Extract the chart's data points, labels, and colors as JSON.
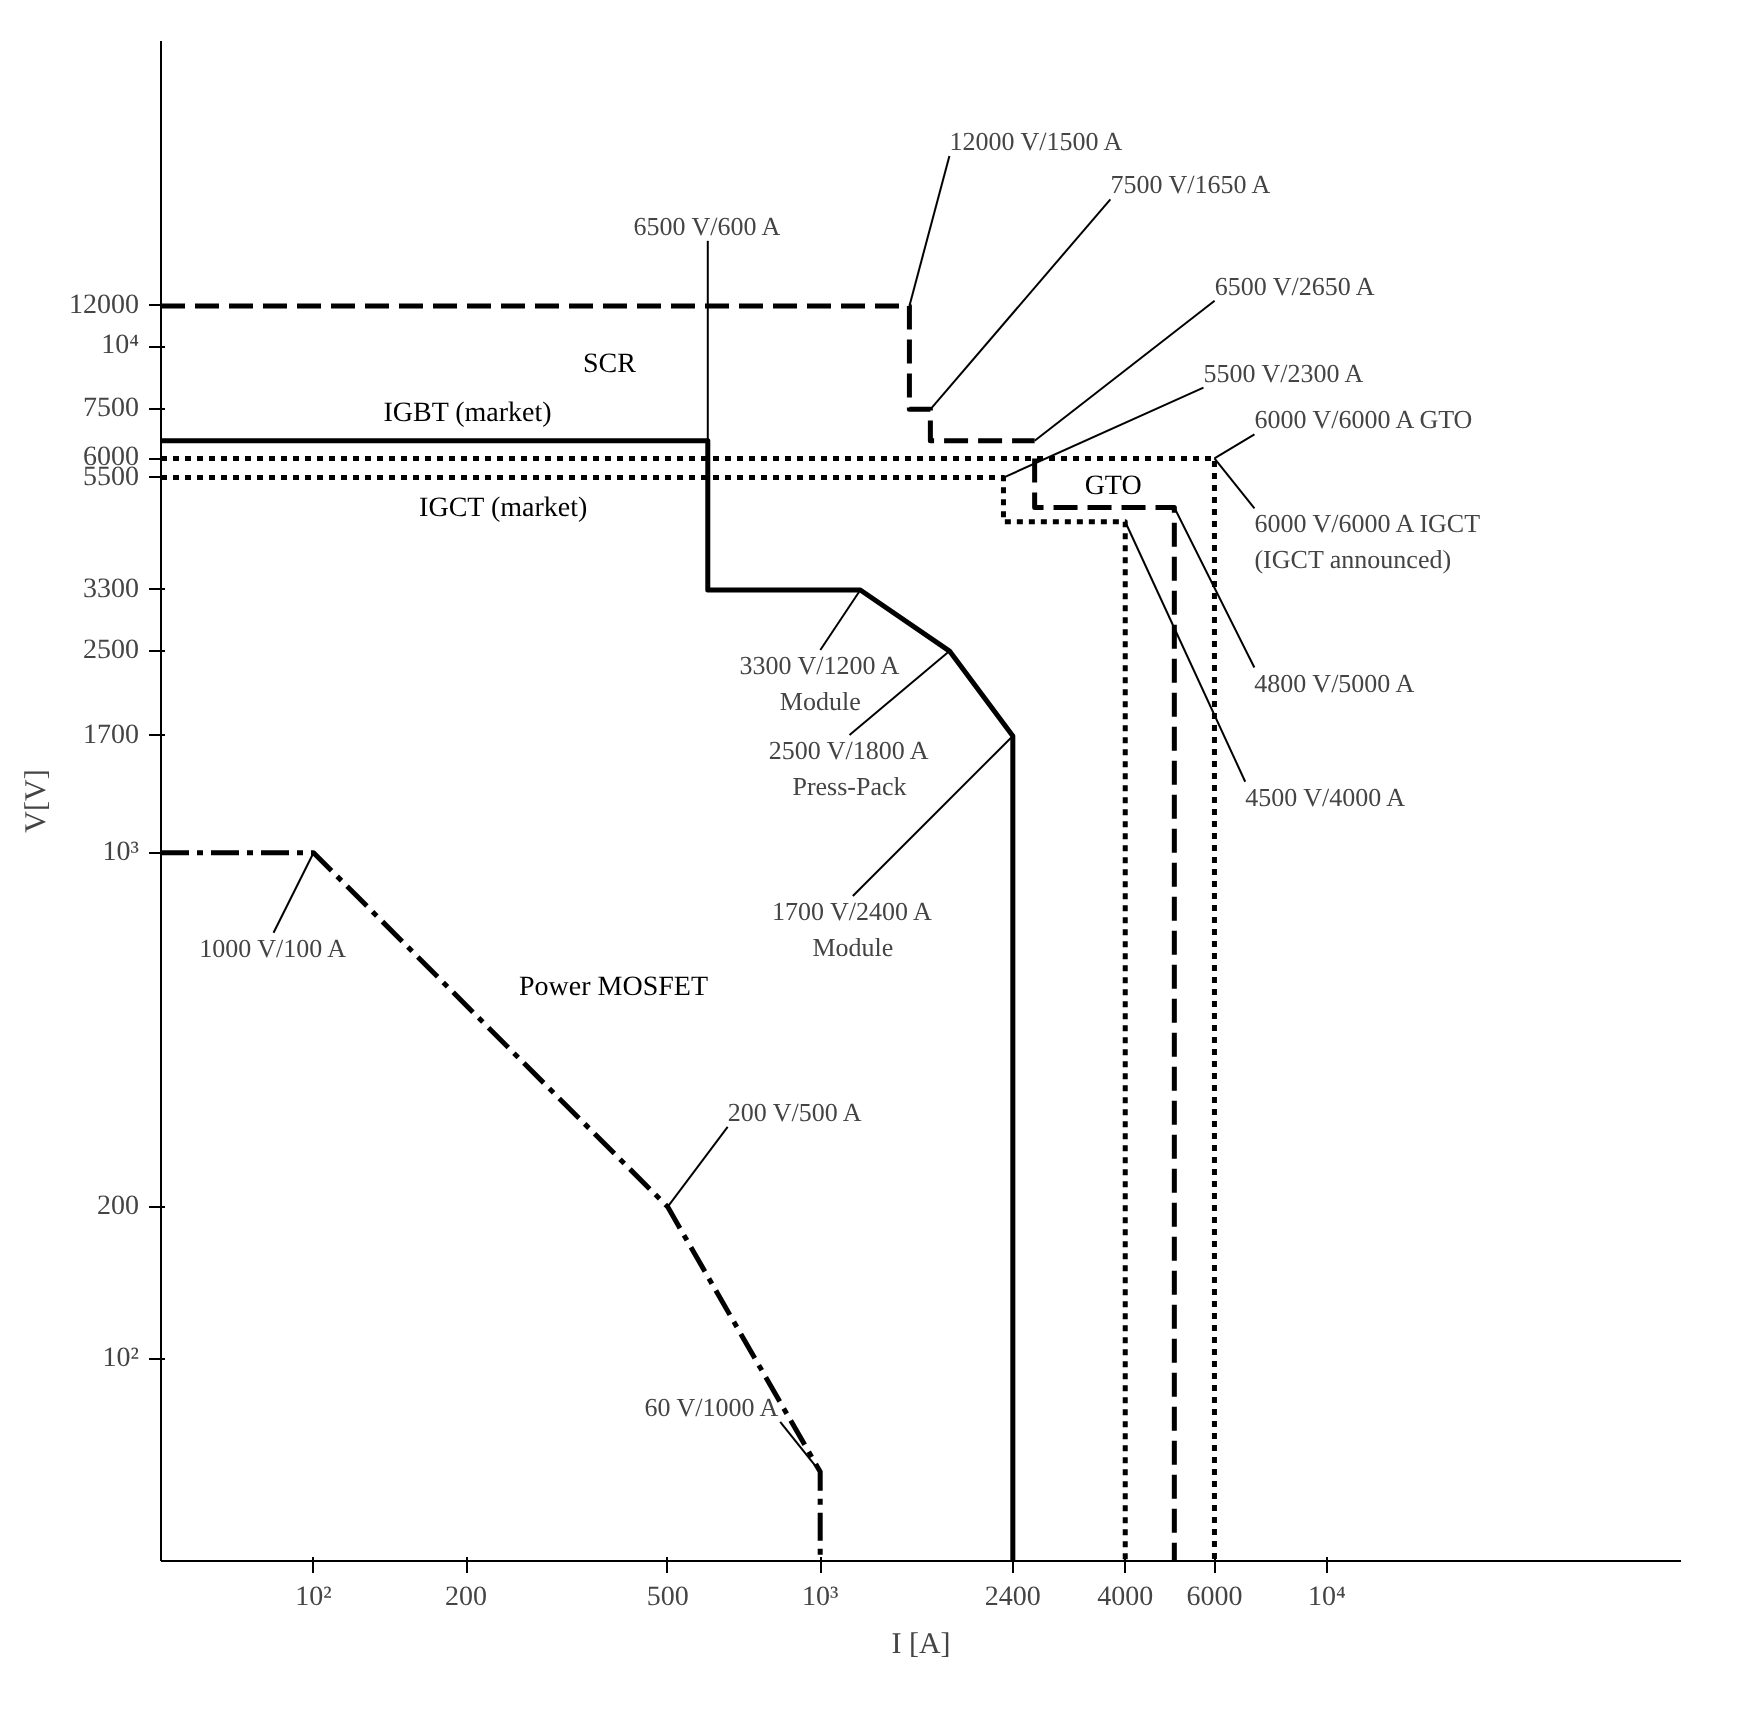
{
  "chart_data": {
    "type": "line",
    "xlabel": "I [A]",
    "ylabel": "V[V]",
    "log": "xy",
    "grid": false,
    "marker": "none",
    "xlim": [
      50,
      50000
    ],
    "ylim": [
      40,
      40000
    ],
    "xticks": [
      {
        "value": 100,
        "label": "10²"
      },
      200,
      500,
      {
        "value": 1000,
        "label": "10³"
      },
      2400,
      4000,
      6000,
      {
        "value": 10000,
        "label": "10⁴"
      }
    ],
    "yticks": [
      {
        "value": 100,
        "label": "10²"
      },
      200,
      {
        "value": 1000,
        "label": "10³"
      },
      1700,
      2500,
      3300,
      5500,
      6000,
      7500,
      {
        "value": 10000,
        "label": "10⁴"
      },
      12000
    ],
    "series": [
      {
        "name": "SCR",
        "color": "#000000",
        "line_style": "dashed",
        "x": [
          50,
          1500,
          1500,
          1650,
          1650,
          2650
        ],
        "values": [
          12000,
          12000,
          7500,
          7500,
          6500,
          6500
        ]
      },
      {
        "name": "IGBT (market)",
        "color": "#000000",
        "line_style": "solid",
        "x": [
          50,
          600,
          600,
          1200,
          1800,
          2400,
          2400
        ],
        "values": [
          6500,
          6500,
          3300,
          3300,
          2500,
          1700,
          40
        ]
      },
      {
        "name": "IGCT (market)",
        "color": "#000000",
        "line_style": "dotted",
        "x": [
          50,
          2300,
          2300,
          4000,
          4000
        ],
        "values": [
          5500,
          5500,
          4500,
          4500,
          40
        ]
      },
      {
        "name": "GTO",
        "color": "#000000",
        "line_style": "dashed",
        "x": [
          2650,
          2650,
          5000,
          5000
        ],
        "values": [
          6000,
          4800,
          4800,
          40
        ]
      },
      {
        "color": "#000000",
        "line_style": "dotted",
        "x": [
          50,
          6000,
          6000
        ],
        "values": [
          6000,
          6000,
          40
        ]
      },
      {
        "name": "Power MOSFET",
        "color": "#000000",
        "line_style": "dashdot",
        "x": [
          50,
          100,
          500,
          1000,
          1000
        ],
        "values": [
          1000,
          1000,
          200,
          60,
          40
        ]
      }
    ],
    "annotations": [
      {
        "text": "6500 V/600 A",
        "x": 600,
        "y": 6500
      },
      {
        "text": "12000 V/1500 A",
        "x": 1500,
        "y": 12000
      },
      {
        "text": "7500 V/1650 A",
        "x": 1650,
        "y": 7500
      },
      {
        "text": "6500 V/2650 A",
        "x": 2650,
        "y": 6500
      },
      {
        "text": "5500 V/2300 A",
        "x": 2300,
        "y": 5500
      },
      {
        "text": "6000 V/6000 A GTO",
        "x": 6000,
        "y": 6000
      },
      {
        "text": "6000 V/6000 A IGCT\n(IGCT announced)",
        "x": 6000,
        "y": 6000
      },
      {
        "text": "4800 V/5000 A",
        "x": 5000,
        "y": 4800
      },
      {
        "text": "4500 V/4000 A",
        "x": 4000,
        "y": 4500
      },
      {
        "text": "3300 V/1200 A\nModule",
        "x": 1200,
        "y": 3300
      },
      {
        "text": "2500 V/1800 A\nPress-Pack",
        "x": 1800,
        "y": 2500
      },
      {
        "text": "1700 V/2400 A\nModule",
        "x": 2400,
        "y": 1700
      },
      {
        "text": "1000 V/100 A",
        "x": 100,
        "y": 1000
      },
      {
        "text": "200 V/500 A",
        "x": 500,
        "y": 200
      },
      {
        "text": "60 V/1000 A",
        "x": 1000,
        "y": 60
      }
    ]
  }
}
